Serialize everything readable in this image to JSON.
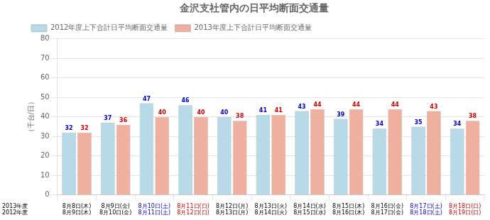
{
  "chart_data": {
    "type": "bar",
    "title": "金沢支社管内の日平均断面交通量",
    "y_label": "（千台/日）",
    "categories": [
      [
        "8月8日(木)",
        "8月9日(木)"
      ],
      [
        "8月9日(金)",
        "8月10日(金)"
      ],
      [
        "8月10日(土)",
        "8月11日(土)"
      ],
      [
        "8月11日(日)",
        "8月12日(日)"
      ],
      [
        "8月12日(月)",
        "8月13日(月)"
      ],
      [
        "8月13日(火)",
        "8月14日(火)"
      ],
      [
        "8月14日(水)",
        "8月15日(水)"
      ],
      [
        "8月15日(木)",
        "8月16日(木)"
      ],
      [
        "8月16日(金)",
        "8月17日(金)"
      ],
      [
        "8月17日(土)",
        "8月18日(土)"
      ],
      [
        "8月18日(日)",
        "8月19日(日)"
      ]
    ],
    "category_row_labels": [
      "2013年度",
      "2012年度"
    ],
    "category_colors": [
      "#000000",
      "#000000",
      "#0000cc",
      "#cc0000",
      "#000000",
      "#000000",
      "#000000",
      "#000000",
      "#000000",
      "#0000cc",
      "#cc0000"
    ],
    "series": [
      {
        "name": "2012年度上下合計日平均断面交通量",
        "color": "#b8d9e8",
        "label_color": "#0000cc",
        "values": [
          32,
          37,
          47,
          46,
          40,
          41,
          43,
          39,
          34,
          35,
          34
        ]
      },
      {
        "name": "2013年度上下合計日平均断面交通量",
        "color": "#f0b0a0",
        "label_color": "#cc0000",
        "values": [
          32,
          36,
          40,
          40,
          38,
          41,
          44,
          44,
          44,
          43,
          38
        ]
      }
    ],
    "ylim": [
      0,
      80
    ],
    "yticks": [
      0,
      10,
      20,
      30,
      40,
      50,
      60,
      70,
      80
    ],
    "grid": true,
    "legend": "upper left",
    "data_labels": true
  }
}
